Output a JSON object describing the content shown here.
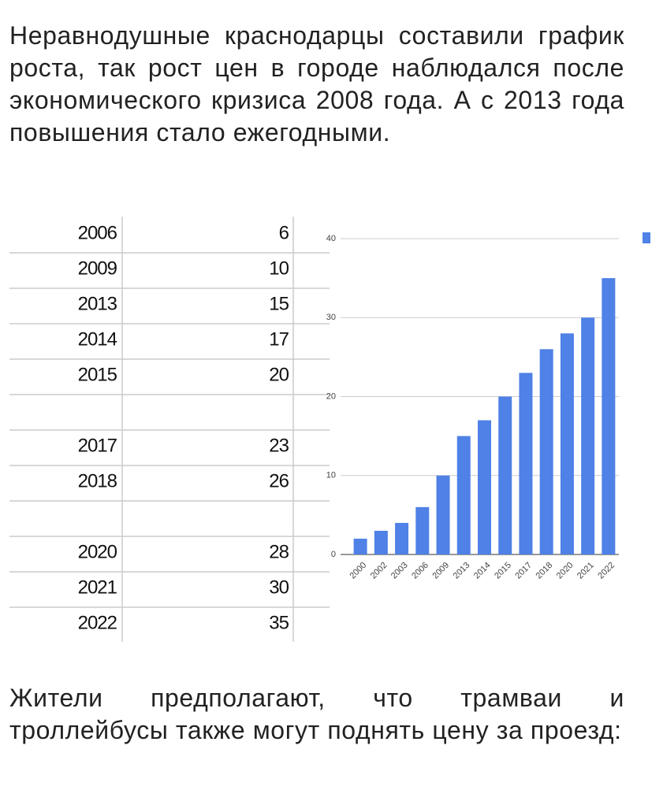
{
  "intro": "Неравнодушные краснодарцы составили график роста, так рост цен в городе наблюдался после экономического кризиса 2008 года. А с 2013 года повышения стало ежегодными.",
  "table": {
    "rows": [
      [
        2006,
        6
      ],
      [
        2009,
        10
      ],
      [
        2013,
        15
      ],
      [
        2014,
        17
      ],
      [
        2015,
        20
      ],
      null,
      [
        2017,
        23
      ],
      [
        2018,
        26
      ],
      null,
      [
        2020,
        28
      ],
      [
        2021,
        30
      ],
      [
        2022,
        35
      ]
    ]
  },
  "chart_data": {
    "type": "bar",
    "categories": [
      "2000",
      "2002",
      "2003",
      "2006",
      "2009",
      "2013",
      "2014",
      "2015",
      "2017",
      "2018",
      "2020",
      "2021",
      "2022"
    ],
    "values": [
      2,
      3,
      4,
      6,
      10,
      15,
      17,
      20,
      23,
      26,
      28,
      30,
      35
    ],
    "color": "#4f81e6",
    "ylim": [
      0,
      40
    ],
    "yticks": [
      0,
      10,
      20,
      30,
      40
    ],
    "grid": true
  },
  "outro": "Жители предполагают, что трамваи и троллейбусы также могут поднять цену за проезд:"
}
